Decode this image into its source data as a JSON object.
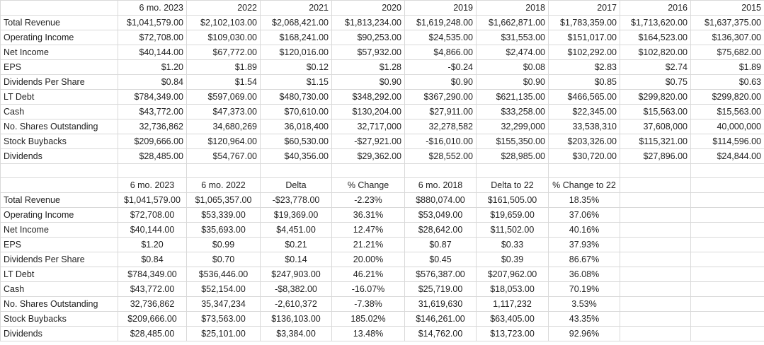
{
  "top_table": {
    "headers": [
      "",
      "6 mo. 2023",
      "2022",
      "2021",
      "2020",
      "2019",
      "2018",
      "2017",
      "2016",
      "2015"
    ],
    "rows": [
      [
        "Total Revenue",
        "$1,041,579.00",
        "$2,102,103.00",
        "$2,068,421.00",
        "$1,813,234.00",
        "$1,619,248.00",
        "$1,662,871.00",
        "$1,783,359.00",
        "$1,713,620.00",
        "$1,637,375.00"
      ],
      [
        "Operating Income",
        "$72,708.00",
        "$109,030.00",
        "$168,241.00",
        "$90,253.00",
        "$24,535.00",
        "$31,553.00",
        "$151,017.00",
        "$164,523.00",
        "$136,307.00"
      ],
      [
        "Net Income",
        "$40,144.00",
        "$67,772.00",
        "$120,016.00",
        "$57,932.00",
        "$4,866.00",
        "$2,474.00",
        "$102,292.00",
        "$102,820.00",
        "$75,682.00"
      ],
      [
        "EPS",
        "$1.20",
        "$1.89",
        "$0.12",
        "$1.28",
        "-$0.24",
        "$0.08",
        "$2.83",
        "$2.74",
        "$1.89"
      ],
      [
        "Dividends Per Share",
        "$0.84",
        "$1.54",
        "$1.15",
        "$0.90",
        "$0.90",
        "$0.90",
        "$0.85",
        "$0.75",
        "$0.63"
      ],
      [
        "LT Debt",
        "$784,349.00",
        "$597,069.00",
        "$480,730.00",
        "$348,292.00",
        "$367,290.00",
        "$621,135.00",
        "$466,565.00",
        "$299,820.00",
        "$299,820.00"
      ],
      [
        "Cash",
        "$43,772.00",
        "$47,373.00",
        "$70,610.00",
        "$130,204.00",
        "$27,911.00",
        "$33,258.00",
        "$22,345.00",
        "$15,563.00",
        "$15,563.00"
      ],
      [
        "No. Shares Outstanding",
        "32,736,862",
        "34,680,269",
        "36,018,400",
        "32,717,000",
        "32,278,582",
        "32,299,000",
        "33,538,310",
        "37,608,000",
        "40,000,000"
      ],
      [
        "Stock Buybacks",
        "$209,666.00",
        "$120,964.00",
        "$60,530.00",
        "-$27,921.00",
        "-$16,010.00",
        "$155,350.00",
        "$203,326.00",
        "$115,321.00",
        "$114,596.00"
      ],
      [
        "Dividends",
        "$28,485.00",
        "$54,767.00",
        "$40,356.00",
        "$29,362.00",
        "$28,552.00",
        "$28,985.00",
        "$30,720.00",
        "$27,896.00",
        "$24,844.00"
      ]
    ]
  },
  "bottom_table": {
    "headers": [
      "",
      "6 mo. 2023",
      "6 mo. 2022",
      "Delta",
      "% Change",
      "6 mo. 2018",
      "Delta to 22",
      "% Change to 22",
      "",
      ""
    ],
    "rows": [
      [
        "Total Revenue",
        "$1,041,579.00",
        "$1,065,357.00",
        "-$23,778.00",
        "-2.23%",
        "$880,074.00",
        "$161,505.00",
        "18.35%",
        "",
        ""
      ],
      [
        "Operating Income",
        "$72,708.00",
        "$53,339.00",
        "$19,369.00",
        "36.31%",
        "$53,049.00",
        "$19,659.00",
        "37.06%",
        "",
        ""
      ],
      [
        "Net Income",
        "$40,144.00",
        "$35,693.00",
        "$4,451.00",
        "12.47%",
        "$28,642.00",
        "$11,502.00",
        "40.16%",
        "",
        ""
      ],
      [
        "EPS",
        "$1.20",
        "$0.99",
        "$0.21",
        "21.21%",
        "$0.87",
        "$0.33",
        "37.93%",
        "",
        ""
      ],
      [
        "Dividends Per Share",
        "$0.84",
        "$0.70",
        "$0.14",
        "20.00%",
        "$0.45",
        "$0.39",
        "86.67%",
        "",
        ""
      ],
      [
        "LT Debt",
        "$784,349.00",
        "$536,446.00",
        "$247,903.00",
        "46.21%",
        "$576,387.00",
        "$207,962.00",
        "36.08%",
        "",
        ""
      ],
      [
        "Cash",
        "$43,772.00",
        "$52,154.00",
        "-$8,382.00",
        "-16.07%",
        "$25,719.00",
        "$18,053.00",
        "70.19%",
        "",
        ""
      ],
      [
        "No. Shares Outstanding",
        "32,736,862",
        "35,347,234",
        "-2,610,372",
        "-7.38%",
        "31,619,630",
        "1,117,232",
        "3.53%",
        "",
        ""
      ],
      [
        "Stock Buybacks",
        "$209,666.00",
        "$73,563.00",
        "$136,103.00",
        "185.02%",
        "$146,261.00",
        "$63,405.00",
        "43.35%",
        "",
        ""
      ],
      [
        "Dividends",
        "$28,485.00",
        "$25,101.00",
        "$3,384.00",
        "13.48%",
        "$14,762.00",
        "$13,723.00",
        "92.96%",
        "",
        ""
      ]
    ]
  }
}
